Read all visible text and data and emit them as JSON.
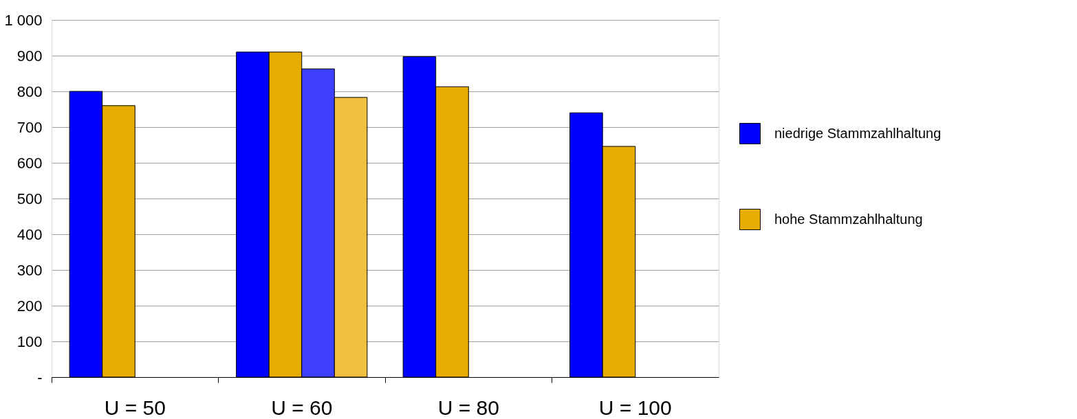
{
  "chart_data": {
    "type": "bar",
    "categories": [
      "U = 50",
      "U = 60",
      "U = 80",
      "U = 100"
    ],
    "series": [
      {
        "name": "niedrige  Stammzahlhaltung",
        "color": "#0000ff",
        "values": [
          800,
          910,
          897,
          740
        ]
      },
      {
        "name": "hohe  Stammzahlhaltung",
        "color": "#e6ac00",
        "values": [
          760,
          910,
          813,
          646
        ]
      },
      {
        "color": "#3f3fff",
        "values": [
          null,
          863,
          null,
          null
        ]
      },
      {
        "color": "#f0c040",
        "values": [
          null,
          783,
          null,
          null
        ]
      }
    ],
    "ylim": [
      0,
      1000
    ],
    "yticks": [
      {
        "value": 0,
        "label": "-"
      },
      100,
      200,
      300,
      400,
      500,
      600,
      700,
      800,
      900,
      {
        "value": 1000,
        "label": "1 000"
      }
    ],
    "grid": "y",
    "legend": "right"
  }
}
